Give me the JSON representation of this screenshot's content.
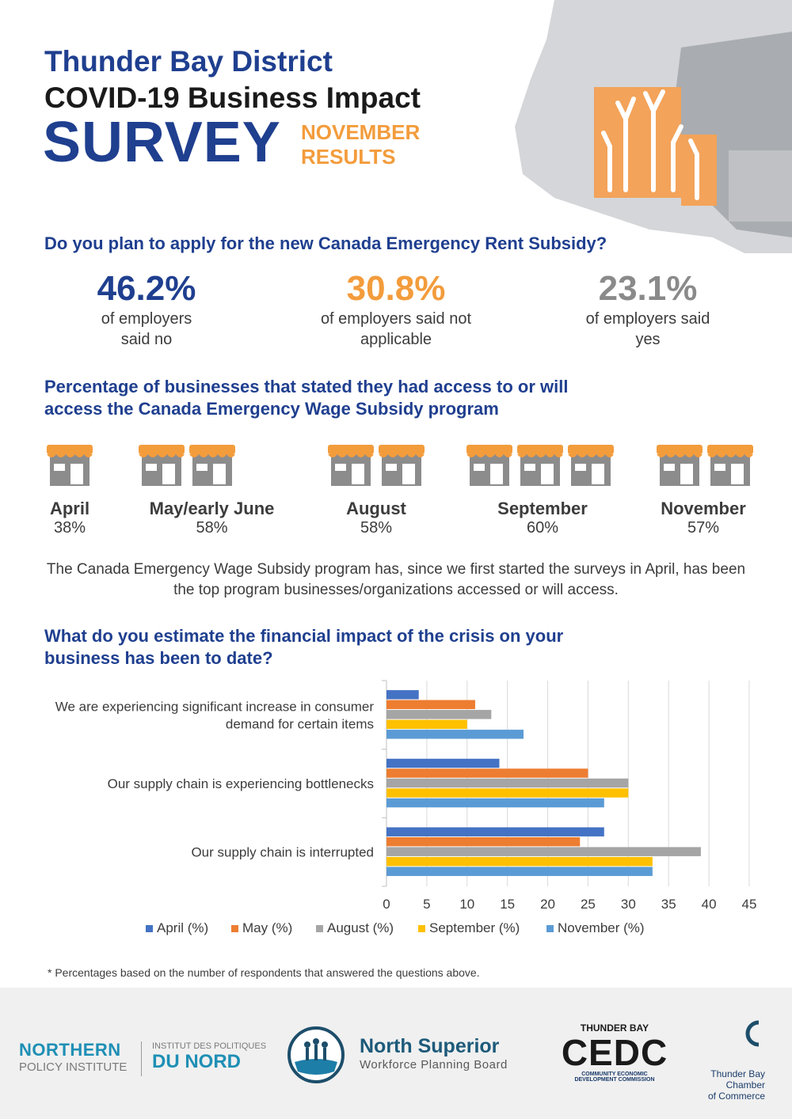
{
  "header": {
    "line1": "Thunder Bay District",
    "line2": "COVID-19 Business Impact",
    "line3": "SURVEY",
    "tag1": "NOVEMBER",
    "tag2": "RESULTS"
  },
  "rent_subsidy": {
    "question": "Do you plan to apply for the new Canada Emergency Rent Subsidy?",
    "stats": [
      {
        "value": "46.2%",
        "desc1": "of employers",
        "desc2": "said no"
      },
      {
        "value": "30.8%",
        "desc1": "of employers said not",
        "desc2": "applicable"
      },
      {
        "value": "23.1%",
        "desc1": "of employers said",
        "desc2": "yes"
      }
    ]
  },
  "wage_subsidy": {
    "question_line1": "Percentage of businesses that stated they had access to or will",
    "question_line2": "access the Canada Emergency Wage Subsidy program",
    "months": [
      {
        "label": "April",
        "value": "38%",
        "stores": 1
      },
      {
        "label": "May/early June",
        "value": "58%",
        "stores": 2
      },
      {
        "label": "August",
        "value": "58%",
        "stores": 2
      },
      {
        "label": "September",
        "value": "60%",
        "stores": 3
      },
      {
        "label": "November",
        "value": "57%",
        "stores": 2
      }
    ],
    "note_line1": "The Canada Emergency Wage Subsidy program has, since we first started the surveys in April, has been",
    "note_line2": "the top program businesses/organizations accessed or will access."
  },
  "financial": {
    "question_line1": "What do you estimate the financial impact of the crisis on your",
    "question_line2": "business has been to date?"
  },
  "chart_data": {
    "type": "bar",
    "orientation": "horizontal",
    "categories": [
      "We are experiencing significant increase in consumer demand for certain items",
      "Our supply chain is experiencing bottlenecks",
      "Our supply chain is interrupted"
    ],
    "category_lines": [
      [
        "We are experiencing significant increase in consumer",
        "demand for certain items"
      ],
      [
        "Our supply chain is experiencing bottlenecks"
      ],
      [
        "Our supply chain is interrupted"
      ]
    ],
    "series": [
      {
        "name": "April (%)",
        "color": "#4472c4",
        "values": [
          4,
          14,
          27
        ]
      },
      {
        "name": "May (%)",
        "color": "#ed7d31",
        "values": [
          11,
          25,
          24
        ]
      },
      {
        "name": "August (%)",
        "color": "#a5a5a5",
        "values": [
          13,
          30,
          39
        ]
      },
      {
        "name": "September (%)",
        "color": "#ffc000",
        "values": [
          10,
          30,
          33
        ]
      },
      {
        "name": "November (%)",
        "color": "#5b9bd5",
        "values": [
          17,
          27,
          33
        ]
      }
    ],
    "xlim": [
      0,
      45
    ],
    "xticks": [
      "0",
      "5",
      "10",
      "15",
      "20",
      "25",
      "30",
      "35",
      "40",
      "45"
    ],
    "grid": true,
    "legend": "bottom"
  },
  "footnote": "* Percentages based on the number of respondents that answered the questions above.",
  "logos": {
    "npi_line1": "NORTHERN",
    "npi_line2": "POLICY INSTITUTE",
    "npi_fr1": "INSTITUT DES POLITIQUES",
    "npi_fr2": "DU NORD",
    "nswpb_line1": "North Superior",
    "nswpb_line2": "Workforce Planning Board",
    "cedc_top": "THUNDER BAY",
    "cedc_main": "CEDC",
    "cedc_sub1": "COMMUNITY ECONOMIC",
    "cedc_sub2": "DEVELOPMENT COMMISSION",
    "chamber1": "Thunder Bay",
    "chamber2": "Chamber",
    "chamber3": "of Commerce"
  },
  "colors": {
    "navy": "#1f3f8f",
    "orange": "#f39c3c",
    "grey": "#8a8a8a"
  }
}
